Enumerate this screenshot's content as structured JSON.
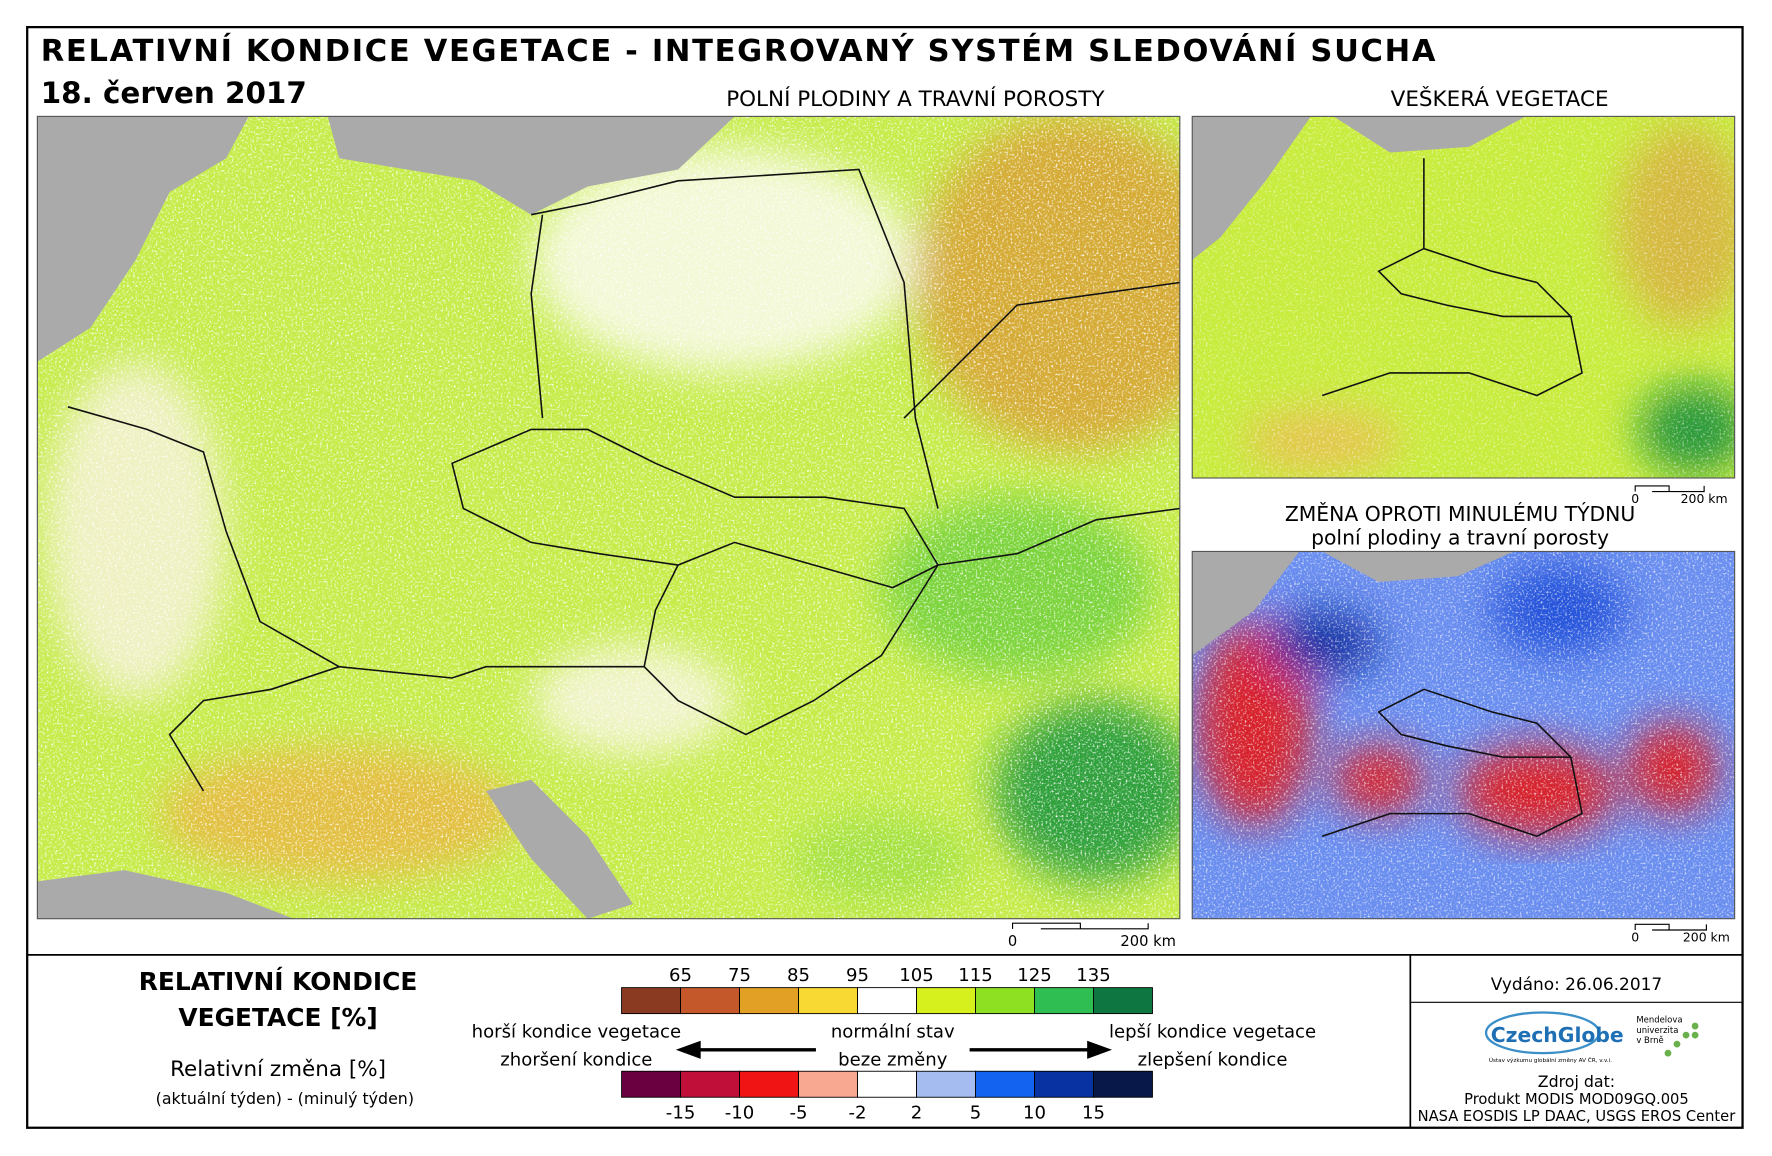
{
  "header": {
    "title": "RELATIVNÍ KONDICE VEGETACE - INTEGROVANÝ SYSTÉM SLEDOVÁNÍ SUCHA",
    "date": "18. červen 2017"
  },
  "maps": [
    {
      "title": "POLNÍ PLODINY A TRAVNÍ POROSTY",
      "scale_labels": [
        "0",
        "200 km"
      ]
    },
    {
      "title": "VEŠKERÁ VEGETACE",
      "scale_labels": [
        "0",
        "200 km"
      ]
    },
    {
      "title": "ZMĚNA OPROTI MINULÉMU TÝDNU",
      "subtitle": "polní plodiny a travní porosty",
      "scale_labels": [
        "0",
        "200 km"
      ]
    }
  ],
  "legend": {
    "title_lines": [
      "RELATIVNÍ KONDICE",
      "VEGETACE [%]"
    ],
    "change_title": "Relativní změna [%]",
    "change_note": "(aktuální týden) - (minulý týden)",
    "condition_labels": [
      65,
      75,
      85,
      95,
      105,
      115,
      125,
      135
    ],
    "condition_colors": [
      "#8b3a22",
      "#c4582a",
      "#e2a024",
      "#f8d832",
      "#ffffff",
      "#d6f01e",
      "#8ee022",
      "#2ebe52",
      "#0e7640"
    ],
    "change_labels": [
      -15,
      -10,
      -5,
      -2,
      2,
      5,
      10,
      15
    ],
    "change_colors": [
      "#6a0040",
      "#c0103a",
      "#f01414",
      "#f8a890",
      "#ffffff",
      "#a4bcf0",
      "#1462f0",
      "#0832a2",
      "#081848"
    ],
    "annotations": {
      "worse": "horší kondice vegetace",
      "normal": "normální stav",
      "better": "lepší kondice vegetace",
      "worsening": "zhoršení kondice",
      "no_change": "beze změny",
      "improvement": "zlepšení kondice"
    }
  },
  "footer": {
    "issued": "Vydáno: 26.06.2017",
    "logo": "CzechGlobe",
    "logo_sub": "Ústav výzkumu globální změny AV ČR, v.v.i.",
    "university_lines": [
      "Mendelova",
      "univerzita",
      "v Brně"
    ],
    "source_title": "Zdroj dat:",
    "source_lines": [
      "Produkt MODIS MOD09GQ.005",
      "NASA EOSDIS LP DAAC, USGS EROS Center"
    ]
  }
}
